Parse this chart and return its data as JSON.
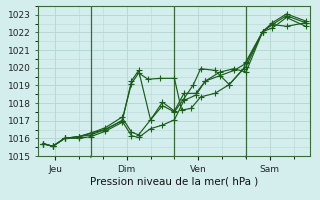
{
  "bg_color": "#d4eeed",
  "grid_color": "#b8d8d4",
  "line_color": "#1a5c1a",
  "marker_color": "#1a5c1a",
  "xlabel": "Pression niveau de la mer( hPa )",
  "ylim": [
    1015,
    1023.5
  ],
  "yticks": [
    1015,
    1016,
    1017,
    1018,
    1019,
    1020,
    1021,
    1022,
    1023
  ],
  "xtick_labels": [
    "Jeu",
    "Dim",
    "Ven",
    "Sam"
  ],
  "xtick_positions": [
    0.5,
    3.5,
    6.5,
    9.5
  ],
  "vline_positions": [
    2.0,
    5.5,
    8.5
  ],
  "series": [
    {
      "x": [
        0.0,
        0.4,
        0.9,
        1.5,
        2.0,
        2.6,
        3.3,
        3.7,
        4.0,
        4.4,
        4.9,
        5.5,
        5.8,
        6.2,
        6.6,
        7.2,
        7.8,
        8.4,
        8.5,
        9.2,
        9.6,
        10.2,
        11.0
      ],
      "y": [
        1015.7,
        1015.55,
        1016.0,
        1016.1,
        1016.2,
        1016.5,
        1017.0,
        1019.1,
        1019.7,
        1019.35,
        1019.4,
        1019.4,
        1017.6,
        1017.7,
        1018.35,
        1018.55,
        1019.05,
        1019.95,
        1020.05,
        1022.05,
        1022.45,
        1022.35,
        1022.55
      ]
    },
    {
      "x": [
        0.0,
        0.4,
        0.9,
        1.5,
        2.0,
        2.6,
        3.3,
        3.7,
        4.0,
        4.5,
        5.0,
        5.5,
        5.9,
        6.3,
        6.6,
        7.2,
        7.8,
        8.4,
        8.5,
        9.2,
        9.6,
        10.2,
        11.0
      ],
      "y": [
        1015.7,
        1015.55,
        1016.0,
        1016.0,
        1016.1,
        1016.4,
        1016.9,
        1019.25,
        1019.85,
        1017.05,
        1017.85,
        1017.5,
        1018.25,
        1019.05,
        1019.95,
        1019.85,
        1019.05,
        1019.95,
        1020.35,
        1022.05,
        1022.55,
        1023.05,
        1022.65
      ]
    },
    {
      "x": [
        0.0,
        0.4,
        0.9,
        1.5,
        2.0,
        2.6,
        3.3,
        3.7,
        4.0,
        4.5,
        5.0,
        5.5,
        5.9,
        6.4,
        6.8,
        7.4,
        8.0,
        8.5,
        9.2,
        9.6,
        10.2,
        11.0
      ],
      "y": [
        1015.7,
        1015.55,
        1016.0,
        1016.1,
        1016.3,
        1016.6,
        1017.2,
        1016.35,
        1016.2,
        1017.05,
        1018.05,
        1017.55,
        1018.55,
        1018.55,
        1019.25,
        1019.75,
        1019.95,
        1019.75,
        1022.05,
        1022.45,
        1022.95,
        1022.55
      ]
    },
    {
      "x": [
        0.0,
        0.4,
        0.9,
        1.5,
        2.0,
        2.6,
        3.3,
        3.7,
        4.0,
        4.5,
        5.0,
        5.5,
        5.9,
        6.4,
        6.8,
        7.4,
        8.0,
        8.5,
        9.2,
        9.6,
        10.2,
        11.0
      ],
      "y": [
        1015.7,
        1015.55,
        1016.0,
        1016.1,
        1016.3,
        1016.5,
        1017.0,
        1016.15,
        1016.05,
        1016.55,
        1016.75,
        1017.05,
        1018.15,
        1018.45,
        1019.25,
        1019.55,
        1019.85,
        1020.25,
        1022.05,
        1022.25,
        1022.85,
        1022.35
      ]
    }
  ]
}
